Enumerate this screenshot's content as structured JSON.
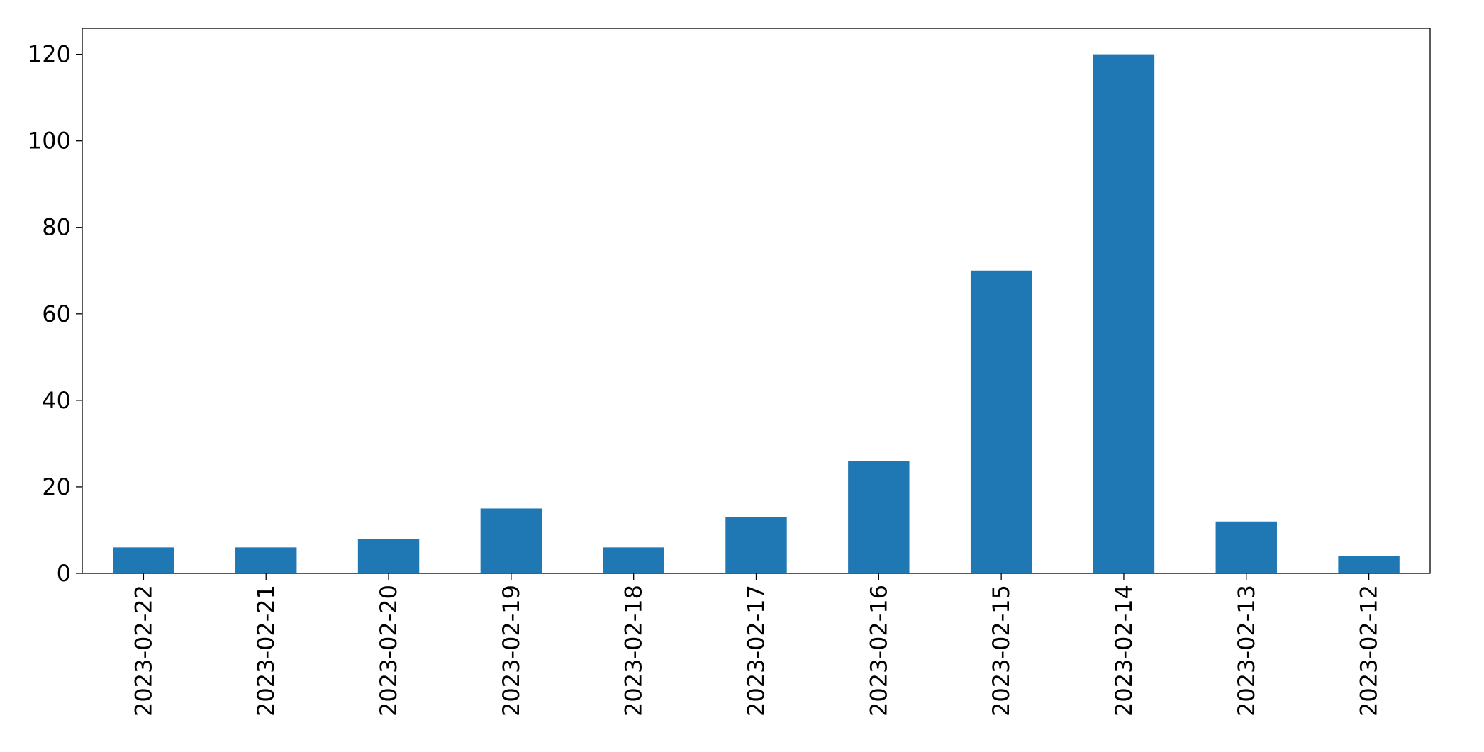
{
  "chart_data": {
    "type": "bar",
    "categories": [
      "2023-02-22",
      "2023-02-21",
      "2023-02-20",
      "2023-02-19",
      "2023-02-18",
      "2023-02-17",
      "2023-02-16",
      "2023-02-15",
      "2023-02-14",
      "2023-02-13",
      "2023-02-12"
    ],
    "values": [
      6,
      6,
      8,
      15,
      6,
      13,
      26,
      70,
      120,
      12,
      4
    ],
    "color": "#1f77b4",
    "ylim": [
      0,
      126
    ],
    "yticks": [
      0,
      20,
      40,
      60,
      80,
      100,
      120
    ],
    "grid": false
  }
}
